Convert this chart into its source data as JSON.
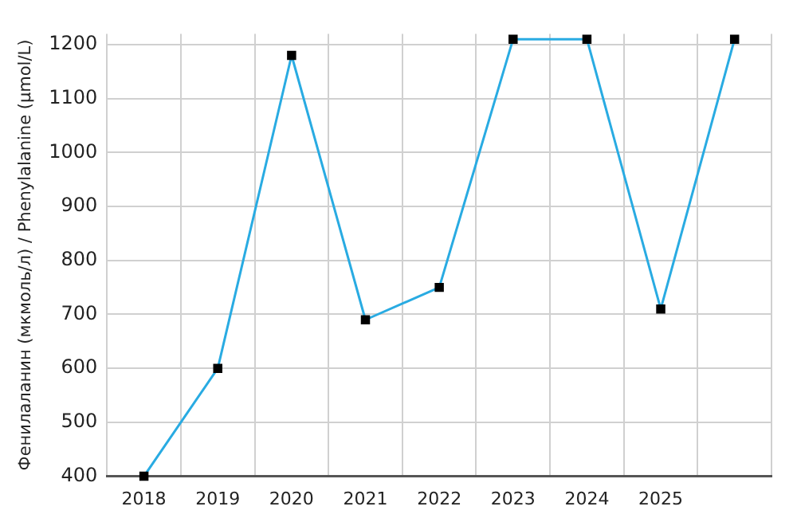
{
  "chart_data": {
    "type": "line",
    "ylabel": "Фенилаланин (мкмоль/л) / Phenylalanine (μmol/L)",
    "categories": [
      "2018",
      "2019",
      "2020",
      "2021",
      "2022",
      "2023",
      "2024",
      "2025",
      null
    ],
    "series": [
      {
        "color": "#29abe2",
        "values": [
          400,
          600,
          1180,
          690,
          750,
          1210,
          1210,
          710,
          1210
        ]
      }
    ],
    "ylim": [
      400,
      1220
    ],
    "yticks": [
      400,
      500,
      600,
      700,
      800,
      900,
      1000,
      1100,
      1200
    ],
    "grid": true,
    "legend": false,
    "marker": "square",
    "line_style": "solid"
  }
}
